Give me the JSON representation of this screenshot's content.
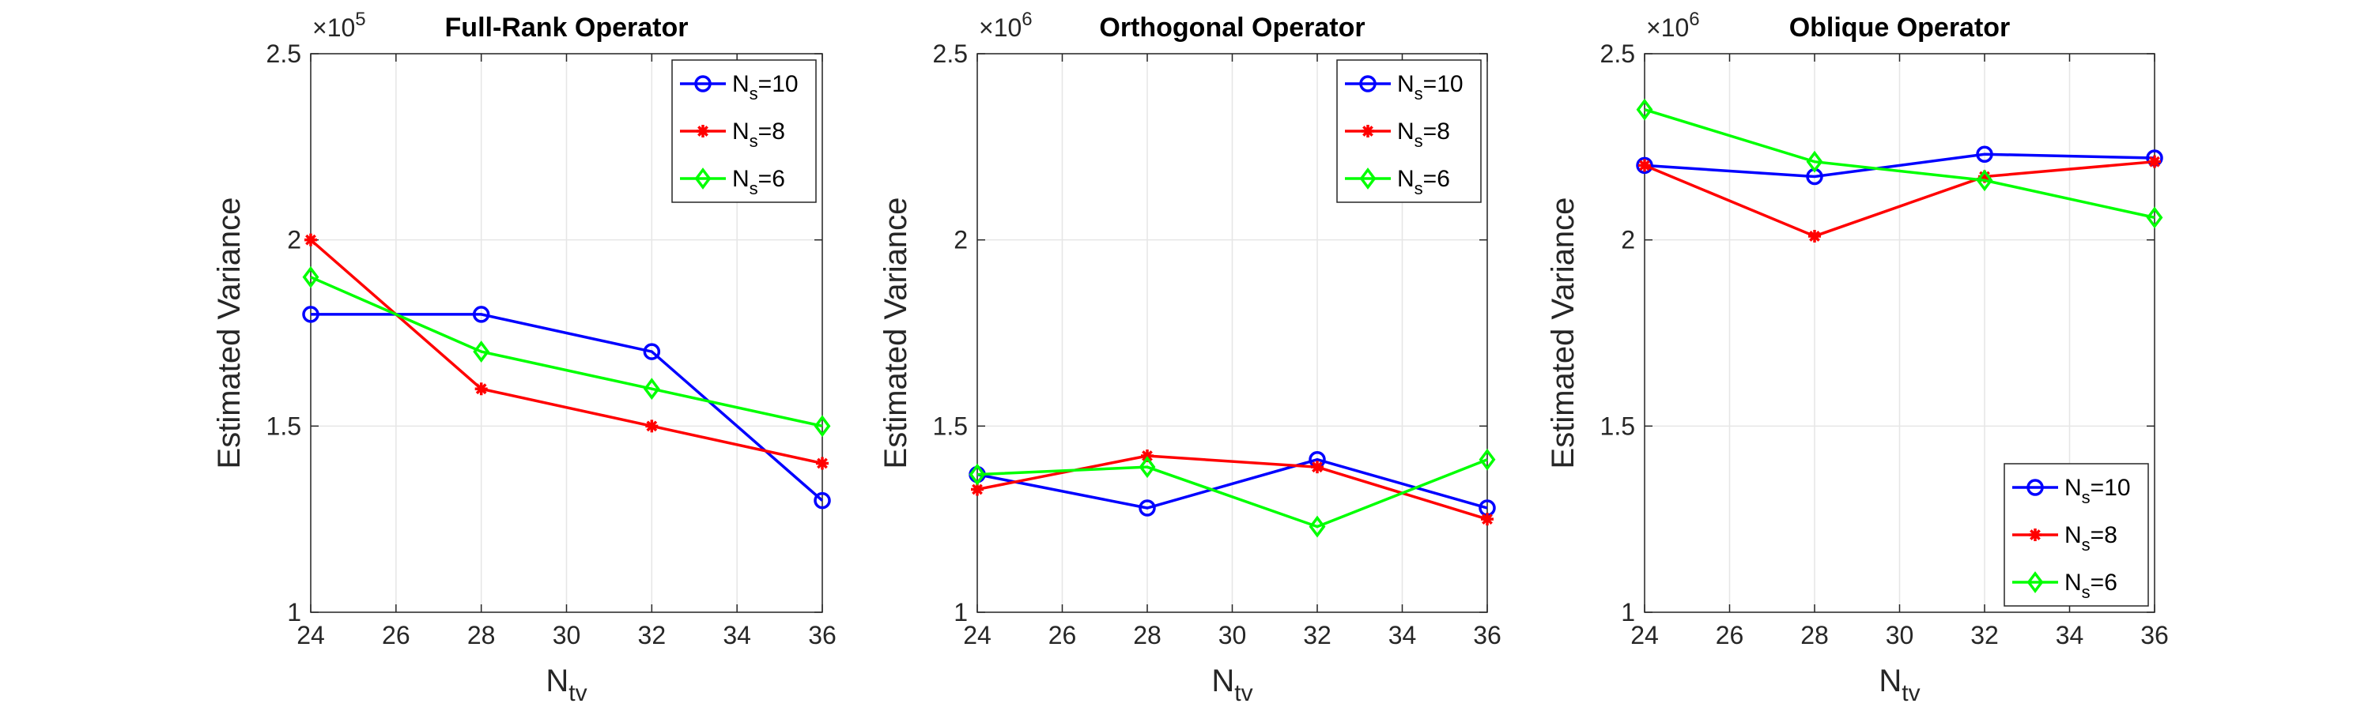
{
  "chart_data": [
    {
      "type": "line",
      "title": "Full-Rank Operator",
      "xlabel": "N",
      "xlabel_sub": "tv",
      "ylabel": "Estimated Variance",
      "x": [
        24,
        28,
        32,
        36
      ],
      "xlim": [
        24,
        36
      ],
      "xticks": [
        "24",
        "26",
        "28",
        "30",
        "32",
        "34",
        "36"
      ],
      "ylim": [
        1,
        2.5
      ],
      "yticks": [
        "1",
        "1.5",
        "2",
        "2.5"
      ],
      "y_exponent_base": "×10",
      "y_exponent_power": "5",
      "grid": true,
      "legend_position": "top-right",
      "series": [
        {
          "name": "N",
          "name_sub": "s",
          "name_suffix": "=10",
          "color": "#0000ff",
          "marker": "circle",
          "values": [
            1.8,
            1.8,
            1.7,
            1.3
          ]
        },
        {
          "name": "N",
          "name_sub": "s",
          "name_suffix": "=8",
          "color": "#ff0000",
          "marker": "asterisk",
          "values": [
            2.0,
            1.6,
            1.5,
            1.4
          ]
        },
        {
          "name": "N",
          "name_sub": "s",
          "name_suffix": "=6",
          "color": "#00ff00",
          "marker": "diamond",
          "values": [
            1.9,
            1.7,
            1.6,
            1.5
          ]
        }
      ]
    },
    {
      "type": "line",
      "title": "Orthogonal Operator",
      "xlabel": "N",
      "xlabel_sub": "tv",
      "ylabel": "Estimated Variance",
      "x": [
        24,
        28,
        32,
        36
      ],
      "xlim": [
        24,
        36
      ],
      "xticks": [
        "24",
        "26",
        "28",
        "30",
        "32",
        "34",
        "36"
      ],
      "ylim": [
        1,
        2.5
      ],
      "yticks": [
        "1",
        "1.5",
        "2",
        "2.5"
      ],
      "y_exponent_base": "×10",
      "y_exponent_power": "6",
      "grid": true,
      "legend_position": "top-right",
      "series": [
        {
          "name": "N",
          "name_sub": "s",
          "name_suffix": "=10",
          "color": "#0000ff",
          "marker": "circle",
          "values": [
            1.37,
            1.28,
            1.41,
            1.28
          ]
        },
        {
          "name": "N",
          "name_sub": "s",
          "name_suffix": "=8",
          "color": "#ff0000",
          "marker": "asterisk",
          "values": [
            1.33,
            1.42,
            1.39,
            1.25
          ]
        },
        {
          "name": "N",
          "name_sub": "s",
          "name_suffix": "=6",
          "color": "#00ff00",
          "marker": "diamond",
          "values": [
            1.37,
            1.39,
            1.23,
            1.41
          ]
        }
      ]
    },
    {
      "type": "line",
      "title": "Oblique Operator",
      "xlabel": "N",
      "xlabel_sub": "tv",
      "ylabel": "Estimated Variance",
      "x": [
        24,
        28,
        32,
        36
      ],
      "xlim": [
        24,
        36
      ],
      "xticks": [
        "24",
        "26",
        "28",
        "30",
        "32",
        "34",
        "36"
      ],
      "ylim": [
        1,
        2.5
      ],
      "yticks": [
        "1",
        "1.5",
        "2",
        "2.5"
      ],
      "y_exponent_base": "×10",
      "y_exponent_power": "6",
      "grid": true,
      "legend_position": "bottom-right",
      "series": [
        {
          "name": "N",
          "name_sub": "s",
          "name_suffix": "=10",
          "color": "#0000ff",
          "marker": "circle",
          "values": [
            2.2,
            2.17,
            2.23,
            2.22
          ]
        },
        {
          "name": "N",
          "name_sub": "s",
          "name_suffix": "=8",
          "color": "#ff0000",
          "marker": "asterisk",
          "values": [
            2.2,
            2.01,
            2.17,
            2.21
          ]
        },
        {
          "name": "N",
          "name_sub": "s",
          "name_suffix": "=6",
          "color": "#00ff00",
          "marker": "diamond",
          "values": [
            2.35,
            2.21,
            2.16,
            2.06
          ]
        }
      ]
    }
  ]
}
